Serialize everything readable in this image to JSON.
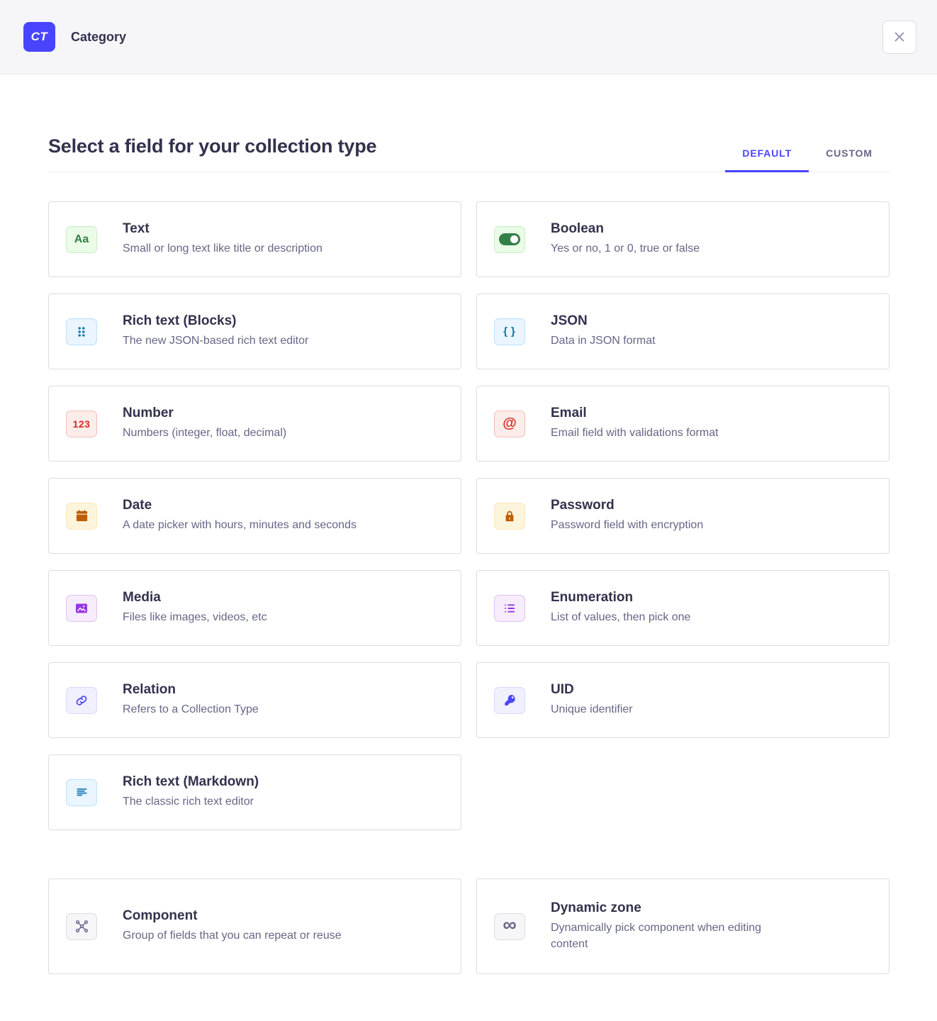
{
  "header": {
    "badge_label": "CT",
    "title": "Category"
  },
  "page": {
    "title": "Select a field for your collection type",
    "tabs": [
      {
        "label": "DEFAULT",
        "active": true
      },
      {
        "label": "CUSTOM",
        "active": false
      }
    ]
  },
  "fields": [
    {
      "name": "Text",
      "description": "Small or long text like title or description",
      "icon": "text-icon",
      "theme": "green"
    },
    {
      "name": "Boolean",
      "description": "Yes or no, 1 or 0, true or false",
      "icon": "boolean-icon",
      "theme": "green"
    },
    {
      "name": "Rich text (Blocks)",
      "description": "The new JSON-based rich text editor",
      "icon": "blocks-icon",
      "theme": "blue"
    },
    {
      "name": "JSON",
      "description": "Data in JSON format",
      "icon": "json-icon",
      "theme": "blue"
    },
    {
      "name": "Number",
      "description": "Numbers (integer, float, decimal)",
      "icon": "number-icon",
      "theme": "red"
    },
    {
      "name": "Email",
      "description": "Email field with validations format",
      "icon": "email-icon",
      "theme": "red"
    },
    {
      "name": "Date",
      "description": "A date picker with hours, minutes and seconds",
      "icon": "date-icon",
      "theme": "yellow"
    },
    {
      "name": "Password",
      "description": "Password field with encryption",
      "icon": "password-icon",
      "theme": "yellow"
    },
    {
      "name": "Media",
      "description": "Files like images, videos, etc",
      "icon": "media-icon",
      "theme": "purple"
    },
    {
      "name": "Enumeration",
      "description": "List of values, then pick one",
      "icon": "enumeration-icon",
      "theme": "purple"
    },
    {
      "name": "Relation",
      "description": "Refers to a Collection Type",
      "icon": "relation-icon",
      "theme": "indigo"
    },
    {
      "name": "UID",
      "description": "Unique identifier",
      "icon": "uid-icon",
      "theme": "indigo"
    },
    {
      "name": "Rich text (Markdown)",
      "description": "The classic rich text editor",
      "icon": "markdown-icon",
      "theme": "blue"
    }
  ],
  "advanced_fields": [
    {
      "name": "Component",
      "description": "Group of fields that you can repeat or reuse",
      "icon": "component-icon",
      "theme": "gray"
    },
    {
      "name": "Dynamic zone",
      "description": "Dynamically pick component when editing content",
      "icon": "dynamic-zone-icon",
      "theme": "gray"
    }
  ],
  "colors": {
    "accent": "#4945ff",
    "header_bg": "#f6f6f9",
    "title_text": "#32324d",
    "muted_text": "#666687",
    "card_border": "#dcdce4",
    "icon_green": "#328048",
    "icon_blue": "#0c75af",
    "icon_red": "#d02b20",
    "icon_orange": "#be5d01",
    "icon_purple": "#9736e8",
    "icon_indigo": "#4945ff",
    "icon_gray": "#666687"
  }
}
